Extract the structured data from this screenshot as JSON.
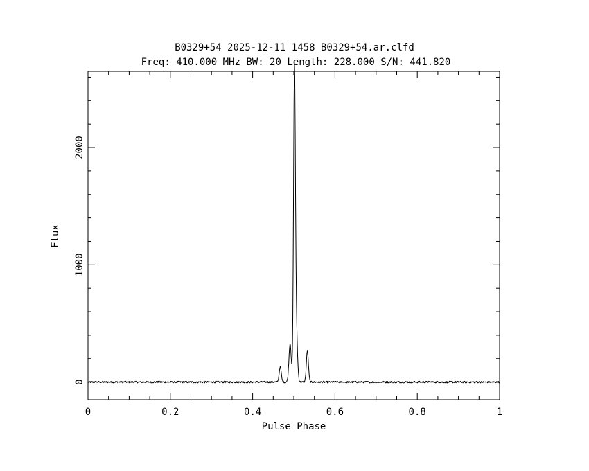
{
  "chart_data": {
    "type": "line",
    "title": "B0329+54 2025-12-11_1458_B0329+54.ar.clfd",
    "subtitle": "Freq: 410.000 MHz BW: 20 Length: 228.000 S/N: 441.820",
    "xlabel": "Pulse Phase",
    "ylabel": "Flux",
    "xlim": [
      0,
      1
    ],
    "ylim": [
      -150,
      2650
    ],
    "x_ticks": [
      {
        "value": 0,
        "label": "0"
      },
      {
        "value": 0.2,
        "label": "0.2"
      },
      {
        "value": 0.4,
        "label": "0.4"
      },
      {
        "value": 0.6,
        "label": "0.6"
      },
      {
        "value": 0.8,
        "label": "0.8"
      },
      {
        "value": 1,
        "label": "1"
      }
    ],
    "y_ticks": [
      {
        "value": 0,
        "label": "0"
      },
      {
        "value": 1000,
        "label": "1000"
      },
      {
        "value": 2000,
        "label": "2000"
      }
    ],
    "grid": false,
    "baseline_noise": 8,
    "series": [
      {
        "components": [
          {
            "center": 0.467,
            "amplitude": 130,
            "width": 0.0025
          },
          {
            "center": 0.491,
            "amplitude": 330,
            "width": 0.0028
          },
          {
            "center": 0.5015,
            "amplitude": 2530,
            "width": 0.0022
          },
          {
            "center": 0.5055,
            "amplitude": 500,
            "width": 0.003
          },
          {
            "center": 0.533,
            "amplitude": 265,
            "width": 0.0025
          }
        ],
        "points": [
          [
            0.0,
            5
          ],
          [
            0.1,
            5
          ],
          [
            0.2,
            0
          ],
          [
            0.3,
            0
          ],
          [
            0.4,
            0
          ],
          [
            0.45,
            5
          ],
          [
            0.46,
            40
          ],
          [
            0.467,
            130
          ],
          [
            0.475,
            25
          ],
          [
            0.485,
            120
          ],
          [
            0.491,
            330
          ],
          [
            0.495,
            370
          ],
          [
            0.498,
            1200
          ],
          [
            0.5015,
            2530
          ],
          [
            0.505,
            1300
          ],
          [
            0.508,
            500
          ],
          [
            0.512,
            120
          ],
          [
            0.52,
            80
          ],
          [
            0.527,
            150
          ],
          [
            0.533,
            265
          ],
          [
            0.54,
            60
          ],
          [
            0.55,
            5
          ],
          [
            0.6,
            0
          ],
          [
            0.7,
            0
          ],
          [
            0.8,
            0
          ],
          [
            0.9,
            5
          ],
          [
            1.0,
            0
          ]
        ]
      }
    ]
  }
}
